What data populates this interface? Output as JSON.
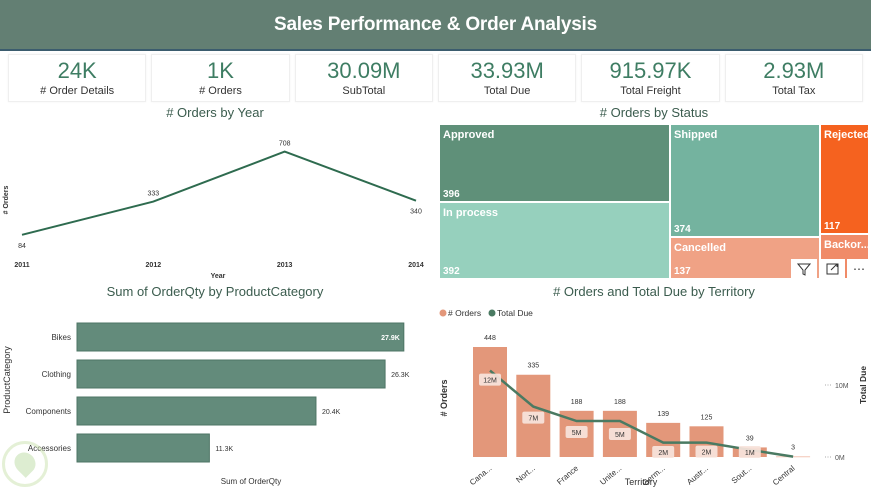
{
  "header": {
    "title": "Sales Performance & Order Analysis"
  },
  "kpis": [
    {
      "value": "24K",
      "label": "# Order Details"
    },
    {
      "value": "1K",
      "label": "# Orders"
    },
    {
      "value": "30.09M",
      "label": "SubTotal"
    },
    {
      "value": "33.93M",
      "label": "Total Due"
    },
    {
      "value": "915.97K",
      "label": "Total Freight"
    },
    {
      "value": "2.93M",
      "label": "Total Tax"
    }
  ],
  "colors": {
    "header": "#637f73",
    "kpi_value": "#3e7d63",
    "line": "#2e6b4f",
    "bar": "#638b7b",
    "orders_bar": "#e3977a",
    "total_due_line": "#4a7a62"
  },
  "toolbar_icons": [
    "filter-icon",
    "focus-mode-icon",
    "more-options-icon"
  ],
  "toolbar_more": "⋯",
  "chart_data": [
    {
      "type": "line",
      "title": "# Orders by Year",
      "xlabel": "Year",
      "ylabel": "# Orders",
      "categories": [
        "2011",
        "2012",
        "2013",
        "2014"
      ],
      "values": [
        84,
        333,
        708,
        340
      ],
      "labels": [
        "84",
        "333",
        "708",
        "340"
      ],
      "ylim": [
        0,
        750
      ],
      "grid": false
    },
    {
      "type": "treemap",
      "title": "# Orders by Status",
      "items": [
        {
          "name": "Approved",
          "value": 396,
          "color": "#5f9079"
        },
        {
          "name": "In process",
          "value": 392,
          "color": "#96d0bd"
        },
        {
          "name": "Shipped",
          "value": 374,
          "color": "#74b39f"
        },
        {
          "name": "Cancelled",
          "value": 137,
          "color": "#f0a285"
        },
        {
          "name": "Rejected",
          "value": 117,
          "color": "#f5621f"
        },
        {
          "name": "Backor...",
          "value": null,
          "color": "#f08b68"
        }
      ]
    },
    {
      "type": "bar",
      "orientation": "horizontal",
      "title": "Sum of OrderQty by ProductCategory",
      "xlabel": "Sum of OrderQty",
      "ylabel": "ProductCategory",
      "categories": [
        "Bikes",
        "Clothing",
        "Components",
        "Accessories"
      ],
      "values": [
        27900,
        26300,
        20400,
        11300
      ],
      "labels": [
        "27.9K",
        "26.3K",
        "20.4K",
        "11.3K"
      ],
      "xlim": [
        0,
        28000
      ]
    },
    {
      "type": "bar",
      "title": "# Orders and Total Due by Territory",
      "xlabel": "Territory",
      "ylabel": "# Orders",
      "y2label": "Total Due",
      "legend": {
        "position": "top-left",
        "entries": [
          "# Orders",
          "Total Due"
        ]
      },
      "categories": [
        "Cana...",
        "Nort...",
        "France",
        "Unite...",
        "Germ...",
        "Austr...",
        "Sout...",
        "Central"
      ],
      "series": [
        {
          "name": "# Orders",
          "type": "bar",
          "values": [
            448,
            335,
            188,
            188,
            139,
            125,
            39,
            3
          ],
          "labels": [
            "448",
            "335",
            "188",
            "188",
            "139",
            "125",
            "39",
            "3"
          ]
        },
        {
          "name": "Total Due",
          "type": "line",
          "axis": "right",
          "values": [
            12,
            7,
            5,
            5,
            2,
            2,
            1,
            0.05
          ],
          "labels": [
            "12M",
            "7M",
            "5M",
            "5M",
            "2M",
            "2M",
            "1M",
            ""
          ]
        }
      ],
      "y2ticks": [
        "10M",
        "0M"
      ],
      "ylim": [
        0,
        500
      ],
      "y2lim": [
        0,
        13.5
      ]
    }
  ]
}
